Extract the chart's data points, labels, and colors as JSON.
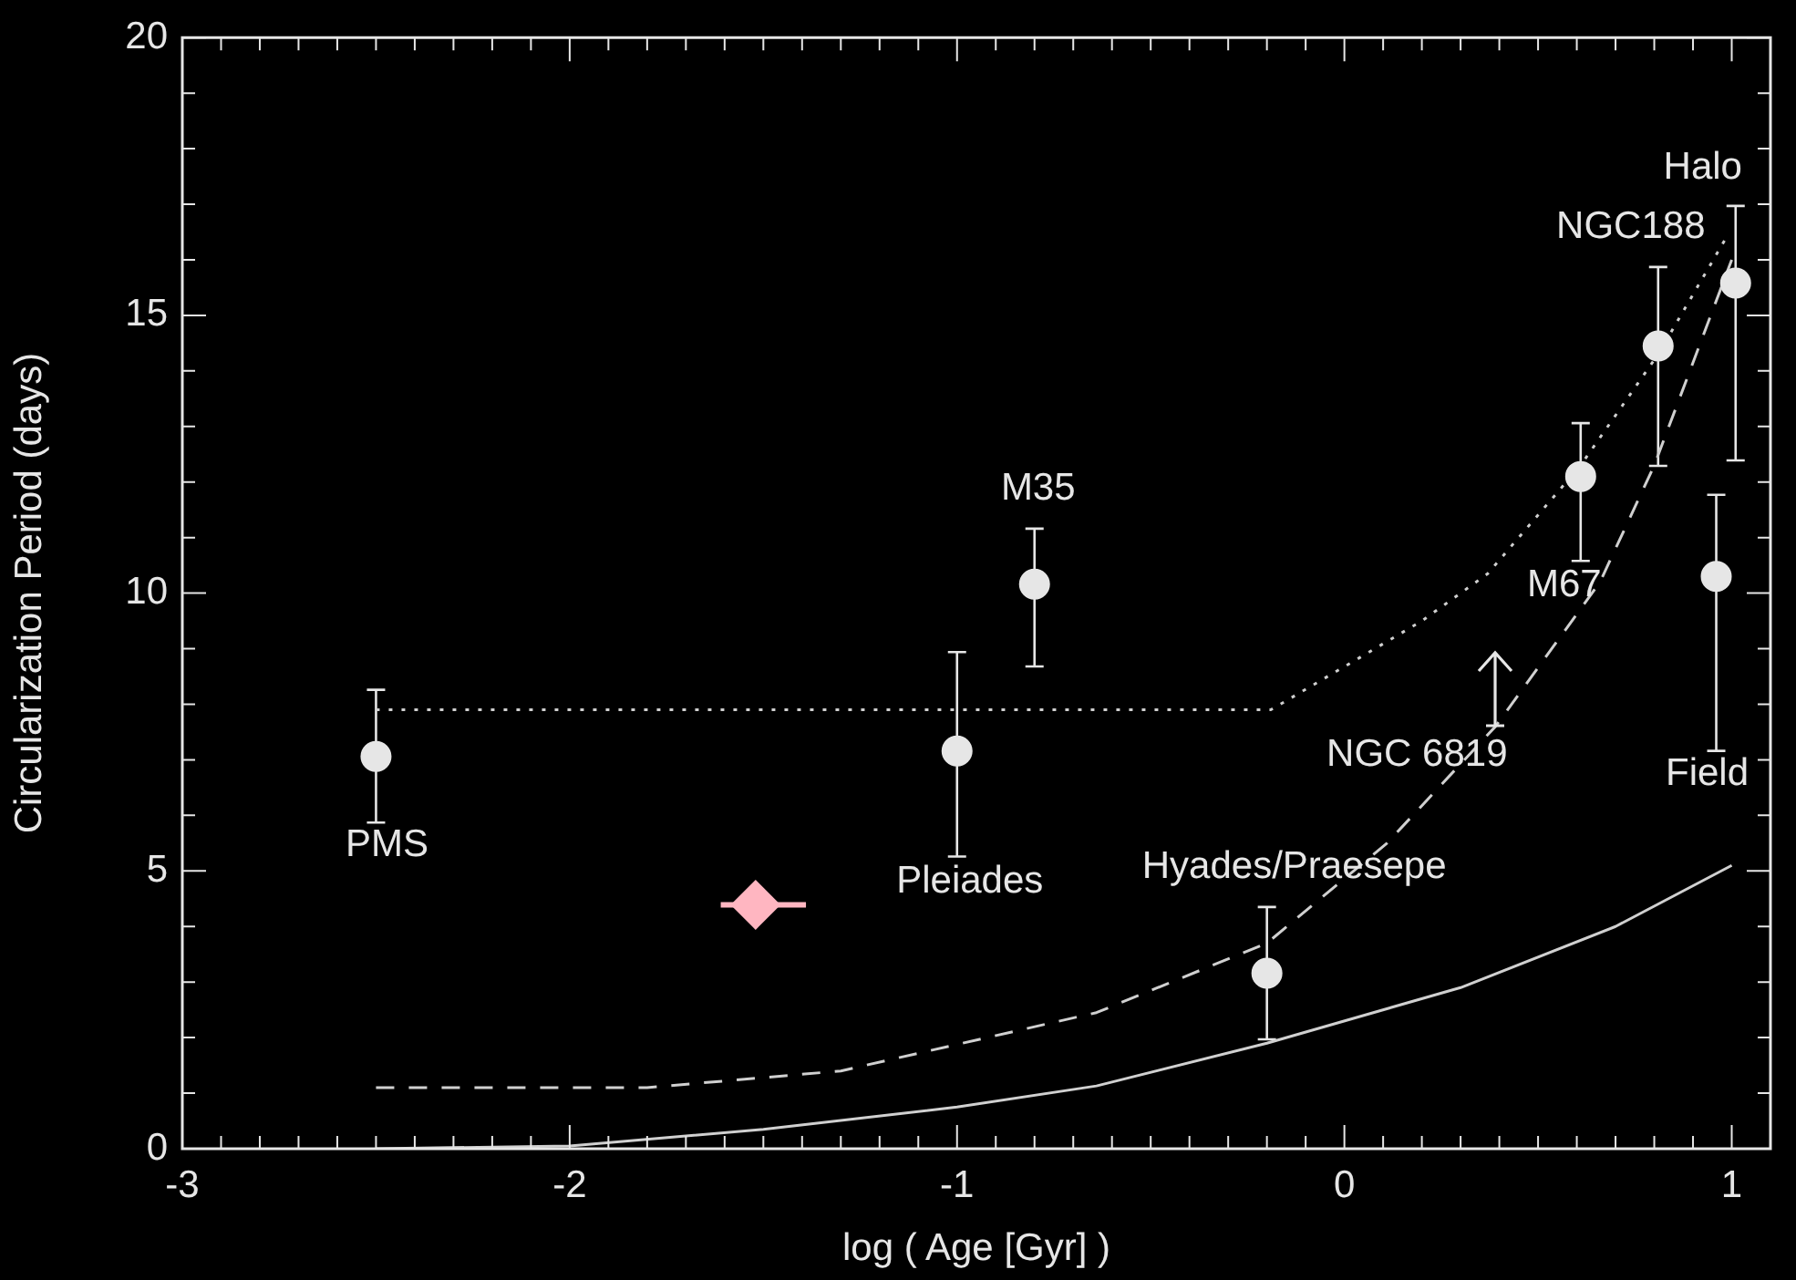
{
  "chart_data": {
    "type": "scatter",
    "xlabel": "log ( Age [Gyr] )",
    "ylabel": "Circularization Period (days)",
    "xlim": [
      -3,
      1.1
    ],
    "ylim": [
      0,
      20
    ],
    "xticks": [
      -3,
      -2,
      -1,
      0,
      1
    ],
    "yticks": [
      0,
      5,
      10,
      15,
      20
    ],
    "grid": false,
    "legend": false,
    "series": [
      {
        "color": "#e6e6e6",
        "marker": "circle",
        "x": [
          -2.5,
          -1,
          -0.8,
          -0.2,
          0.61,
          0.81,
          1.01,
          0.96
        ],
        "values": [
          7.06,
          7.16,
          10.16,
          3.16,
          12.1,
          14.45,
          15.58,
          10.3
        ],
        "errors": [
          [
            5.87,
            8.26
          ],
          [
            5.26,
            8.94
          ],
          [
            8.68,
            11.16
          ],
          [
            1.97,
            4.35
          ],
          [
            10.58,
            13.06
          ],
          [
            12.29,
            15.87
          ],
          [
            12.39,
            16.97
          ],
          [
            7.16,
            11.77
          ]
        ]
      },
      {
        "color": "#ffb6c1",
        "marker": "diamond",
        "x": [
          -1.52
        ],
        "values": [
          4.39
        ],
        "xerrors": [
          [
            -1.61,
            -1.39
          ]
        ]
      },
      {
        "type": "line",
        "color": "#d0d0d0",
        "line_style": "dotted",
        "marker": "none",
        "x": [
          -2.5,
          -0.19,
          0.03,
          0.2,
          0.37,
          0.61,
          0.81,
          0.99
        ],
        "values": [
          7.9,
          7.9,
          8.8,
          9.5,
          10.35,
          12.3,
          14.3,
          16.45
        ]
      },
      {
        "type": "line",
        "color": "#d0d0d0",
        "line_style": "dashed",
        "marker": "none",
        "x": [
          -2.5,
          -1.8,
          -1.3,
          -0.64,
          -0.2,
          0.11,
          0.39,
          0.66,
          0.8,
          1.0
        ],
        "values": [
          1.1,
          1.1,
          1.4,
          2.45,
          3.7,
          5.5,
          7.6,
          10.2,
          12.3,
          16.0
        ]
      },
      {
        "type": "line",
        "color": "#d0d0d0",
        "line_style": "solid",
        "marker": "none",
        "x": [
          -2.5,
          -2.0,
          -1.5,
          -1.0,
          -0.64,
          -0.2,
          0.3,
          0.7,
          1.0
        ],
        "values": [
          0.0,
          0.05,
          0.35,
          0.75,
          1.13,
          1.9,
          2.9,
          4.0,
          5.1
        ]
      }
    ],
    "annotations": [
      {
        "text": "PMS",
        "x": -2.5,
        "y": 7.06
      },
      {
        "text": "Pleiades",
        "x": -1,
        "y": 7.16
      },
      {
        "text": "M35",
        "x": -0.8,
        "y": 10.16
      },
      {
        "text": "Hyades/Praesepe",
        "x": -0.2,
        "y": 3.16
      },
      {
        "text": "NGC 6819",
        "x": 0.39,
        "y": 7.6
      },
      {
        "text": "M67",
        "x": 0.61,
        "y": 12.1
      },
      {
        "text": "NGC188",
        "x": 0.81,
        "y": 14.45
      },
      {
        "text": "Halo",
        "x": 1.01,
        "y": 15.58
      },
      {
        "text": "Field",
        "x": 0.96,
        "y": 7.16
      }
    ]
  }
}
